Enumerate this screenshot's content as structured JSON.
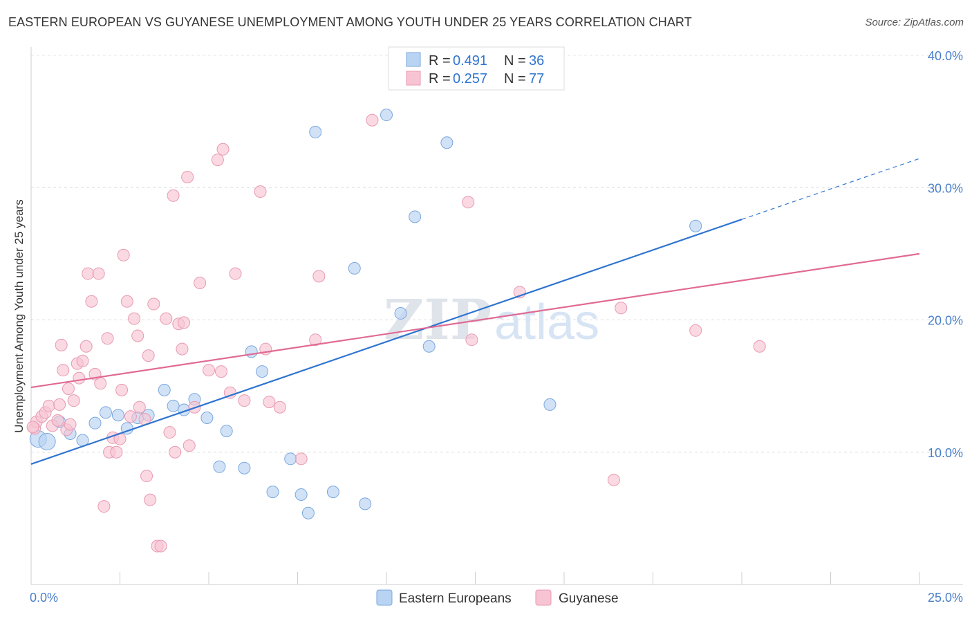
{
  "title": "EASTERN EUROPEAN VS GUYANESE UNEMPLOYMENT AMONG YOUTH UNDER 25 YEARS CORRELATION CHART",
  "source": "Source: ZipAtlas.com",
  "watermark": {
    "part1": "ZIP",
    "part2": "atlas"
  },
  "colors": {
    "blue_fill": "#b9d3f3",
    "blue_stroke": "#7aa7de",
    "blue_line": "#2f74d0",
    "pink_fill": "#f7c4d3",
    "pink_stroke": "#e89ab2",
    "pink_line": "#e06a94",
    "tick_text": "#4a7fc9"
  },
  "legend": {
    "rows": [
      {
        "r_label": "R = ",
        "r_value": "0.491",
        "n_label": "N = ",
        "n_value": "36"
      },
      {
        "r_label": "R = ",
        "r_value": "0.257",
        "n_label": "N = ",
        "n_value": "77"
      }
    ]
  },
  "chart_data": {
    "type": "scatter",
    "title": "EASTERN EUROPEAN VS GUYANESE UNEMPLOYMENT AMONG YOUTH UNDER 25 YEARS CORRELATION CHART",
    "xlabel": "",
    "ylabel": "Unemployment Among Youth under 25 years",
    "xlim": [
      0,
      25
    ],
    "ylim": [
      0,
      40
    ],
    "x_tick_labels": [
      "0.0%",
      "25.0%"
    ],
    "y_ticks": [
      10,
      20,
      30,
      40
    ],
    "y_tick_labels": [
      "10.0%",
      "20.0%",
      "30.0%",
      "40.0%"
    ],
    "grid": "horizontal dashed",
    "legend_position": "top-center",
    "series": [
      {
        "name": "Eastern Europeans",
        "color": "#b9d3f3",
        "trend": {
          "x": [
            0,
            20
          ],
          "y": [
            9.1,
            27.6
          ],
          "dashed_extension_to": [
            25,
            32.2
          ]
        },
        "points": [
          [
            0.2,
            11.0
          ],
          [
            0.45,
            10.8
          ],
          [
            0.8,
            12.3
          ],
          [
            1.1,
            11.4
          ],
          [
            1.45,
            10.9
          ],
          [
            1.8,
            12.2
          ],
          [
            2.1,
            13.0
          ],
          [
            2.45,
            12.8
          ],
          [
            2.7,
            11.8
          ],
          [
            3.0,
            12.6
          ],
          [
            3.3,
            12.8
          ],
          [
            3.75,
            14.7
          ],
          [
            4.0,
            13.5
          ],
          [
            4.3,
            13.2
          ],
          [
            4.6,
            14.0
          ],
          [
            4.95,
            12.6
          ],
          [
            5.3,
            8.9
          ],
          [
            5.5,
            11.6
          ],
          [
            6.0,
            8.8
          ],
          [
            6.2,
            17.6
          ],
          [
            6.5,
            16.1
          ],
          [
            6.8,
            7.0
          ],
          [
            7.3,
            9.5
          ],
          [
            7.6,
            6.8
          ],
          [
            7.8,
            5.4
          ],
          [
            8.0,
            34.2
          ],
          [
            8.5,
            7.0
          ],
          [
            9.1,
            23.9
          ],
          [
            9.4,
            6.1
          ],
          [
            10.0,
            35.5
          ],
          [
            10.4,
            20.5
          ],
          [
            10.8,
            27.8
          ],
          [
            11.2,
            18.0
          ],
          [
            11.7,
            33.4
          ],
          [
            14.6,
            13.6
          ],
          [
            18.7,
            27.1
          ]
        ]
      },
      {
        "name": "Guyanese",
        "color": "#f7c4d3",
        "trend": {
          "x": [
            0,
            25
          ],
          "y": [
            14.9,
            25.0
          ]
        },
        "points": [
          [
            0.1,
            11.8
          ],
          [
            0.15,
            12.3
          ],
          [
            0.3,
            12.7
          ],
          [
            0.4,
            13.0
          ],
          [
            0.5,
            13.5
          ],
          [
            0.6,
            12.0
          ],
          [
            0.75,
            12.4
          ],
          [
            0.8,
            13.6
          ],
          [
            0.85,
            18.1
          ],
          [
            0.9,
            16.2
          ],
          [
            1.0,
            11.7
          ],
          [
            1.05,
            14.8
          ],
          [
            1.1,
            12.1
          ],
          [
            1.2,
            13.9
          ],
          [
            1.3,
            16.7
          ],
          [
            1.35,
            15.6
          ],
          [
            1.45,
            16.9
          ],
          [
            1.55,
            18.0
          ],
          [
            1.6,
            23.5
          ],
          [
            1.7,
            21.4
          ],
          [
            1.8,
            15.9
          ],
          [
            1.9,
            23.5
          ],
          [
            1.95,
            15.2
          ],
          [
            2.05,
            5.9
          ],
          [
            2.15,
            18.6
          ],
          [
            2.2,
            10.0
          ],
          [
            2.3,
            11.1
          ],
          [
            2.4,
            10.0
          ],
          [
            2.5,
            11.0
          ],
          [
            2.55,
            14.7
          ],
          [
            2.6,
            24.9
          ],
          [
            2.7,
            21.4
          ],
          [
            2.8,
            12.7
          ],
          [
            2.9,
            20.1
          ],
          [
            3.0,
            18.8
          ],
          [
            3.05,
            13.4
          ],
          [
            3.2,
            12.5
          ],
          [
            3.25,
            8.2
          ],
          [
            3.3,
            17.3
          ],
          [
            3.35,
            6.4
          ],
          [
            3.45,
            21.2
          ],
          [
            3.55,
            2.9
          ],
          [
            3.65,
            2.9
          ],
          [
            3.8,
            20.1
          ],
          [
            3.9,
            11.5
          ],
          [
            4.0,
            29.4
          ],
          [
            4.05,
            10.0
          ],
          [
            4.15,
            19.7
          ],
          [
            4.25,
            17.8
          ],
          [
            4.3,
            19.8
          ],
          [
            4.4,
            30.8
          ],
          [
            4.45,
            10.5
          ],
          [
            4.6,
            13.4
          ],
          [
            4.75,
            22.8
          ],
          [
            5.0,
            16.2
          ],
          [
            5.25,
            32.1
          ],
          [
            5.35,
            16.1
          ],
          [
            5.4,
            32.9
          ],
          [
            5.6,
            14.5
          ],
          [
            5.75,
            23.5
          ],
          [
            6.0,
            13.9
          ],
          [
            6.45,
            29.7
          ],
          [
            6.6,
            17.8
          ],
          [
            6.7,
            13.8
          ],
          [
            7.0,
            13.4
          ],
          [
            7.6,
            9.5
          ],
          [
            8.0,
            18.5
          ],
          [
            8.1,
            23.3
          ],
          [
            9.6,
            35.1
          ],
          [
            12.3,
            28.9
          ],
          [
            12.4,
            18.5
          ],
          [
            13.75,
            22.1
          ],
          [
            16.4,
            7.9
          ],
          [
            16.6,
            20.9
          ],
          [
            18.7,
            19.2
          ],
          [
            20.5,
            18.0
          ],
          [
            0.05,
            11.9
          ]
        ]
      }
    ]
  }
}
